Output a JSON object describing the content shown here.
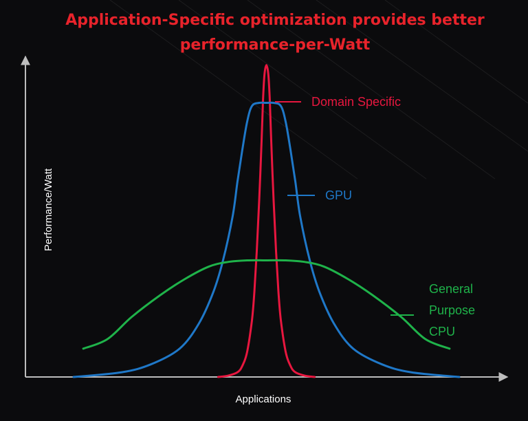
{
  "chart_data": {
    "type": "line",
    "title_lines": [
      "Application-Specific optimization provides better",
      "performance-per-Watt"
    ],
    "xlabel": "Applications",
    "ylabel": "Performance/Watt",
    "xlim": [
      0,
      100
    ],
    "ylim": [
      0,
      100
    ],
    "grid": false,
    "legend": "inline-right",
    "series": [
      {
        "name": "Domain Specific",
        "color": "#e8173f",
        "label_lines": [
          "Domain Specific"
        ],
        "x": [
          40,
          42,
          44,
          45,
          46,
          47,
          47.5,
          48,
          48.5,
          49,
          49.3,
          49.6,
          50,
          50.4,
          50.7,
          51,
          51.5,
          52,
          52.5,
          53,
          54,
          55,
          56,
          58,
          60
        ],
        "y": [
          0,
          0.4,
          1.5,
          3.5,
          8,
          18,
          27,
          40,
          56,
          75,
          88,
          96,
          99,
          96,
          88,
          75,
          56,
          40,
          27,
          18,
          8,
          3.5,
          1.5,
          0.4,
          0
        ]
      },
      {
        "name": "GPU",
        "color": "#1f78c8",
        "label_lines": [
          "GPU"
        ],
        "x": [
          10,
          20,
          26,
          32,
          36,
          39,
          41,
          43,
          44,
          45,
          46,
          47,
          48.5,
          50,
          51.5,
          53,
          54,
          55,
          56,
          57,
          59,
          61,
          64,
          68,
          74,
          80,
          90
        ],
        "y": [
          0,
          1.5,
          4,
          9,
          17,
          27,
          37,
          51,
          62,
          72,
          81,
          86,
          87,
          87,
          87,
          86,
          81,
          72,
          62,
          51,
          37,
          27,
          17,
          9,
          4,
          1.5,
          0
        ]
      },
      {
        "name": "General Purpose CPU",
        "color": "#1fb34a",
        "label_lines": [
          "General",
          "Purpose",
          "CPU"
        ],
        "x": [
          12,
          17,
          22,
          28,
          33,
          38,
          42,
          46,
          50,
          54,
          58,
          62,
          67,
          72,
          78,
          83,
          88
        ],
        "y": [
          9,
          12,
          19,
          26,
          31,
          35,
          36.5,
          37,
          37,
          37,
          36.5,
          35,
          31,
          26,
          19,
          12,
          9
        ]
      }
    ]
  }
}
